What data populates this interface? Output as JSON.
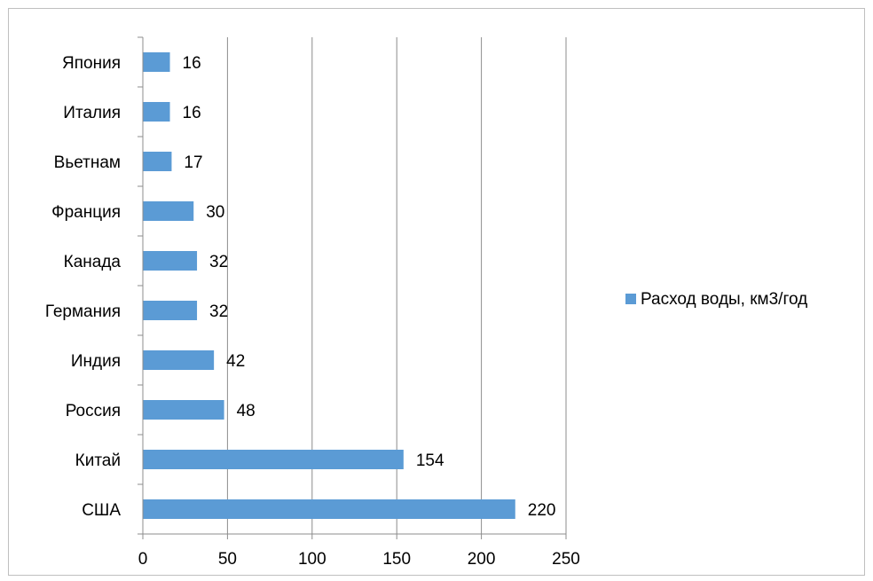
{
  "chart_data": {
    "type": "bar",
    "orientation": "horizontal",
    "categories": [
      "Япония",
      "Италия",
      "Вьетнам",
      "Франция",
      "Канада",
      "Германия",
      "Индия",
      "Россия",
      "Китай",
      "США"
    ],
    "series": [
      {
        "name": "Расход воды, км3/год",
        "values": [
          16,
          16,
          17,
          30,
          32,
          32,
          42,
          48,
          154,
          220
        ],
        "color": "#5b9bd5"
      }
    ],
    "xlim": [
      0,
      250
    ],
    "xticks": [
      "0",
      "50",
      "100",
      "150",
      "200",
      "250"
    ],
    "grid": "vertical",
    "legend_position": "right",
    "data_labels": true
  }
}
